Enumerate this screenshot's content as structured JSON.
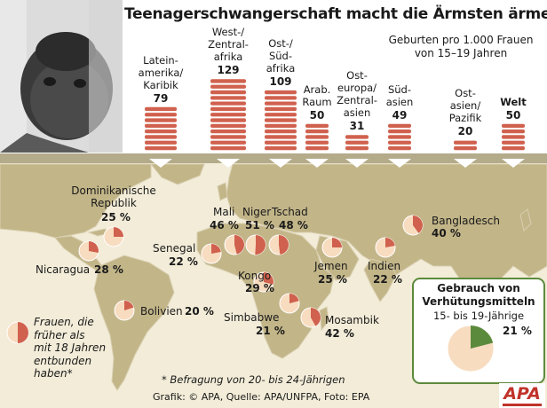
{
  "title": "Teenagerschwangerschaft macht die Ärmsten ärmer",
  "unit_note": "Geburten pro 1.000 Frauen\nvon 15–19 Jahren",
  "legend_note": "Frauen, die\nfrüher als\nmit 18 Jahren\nentbunden\nhaben*",
  "footnote": "* Befragung von 20- bis 24-Jährigen",
  "credit": "Grafik: © APA, Quelle: APA/UNFPA, Foto: EPA",
  "logo_text": "APA",
  "contraception": {
    "title": "Gebrauch von\nVerhütungsmitteln",
    "subtitle": "15- bis 19-Jährige",
    "value": 21,
    "label": "21 %"
  },
  "colors": {
    "bar": "#d0614e",
    "pie_base": "#f8dcc0",
    "pie_share": "#d0614e",
    "contra_share": "#5c8a3c",
    "band": "#b3ab8a",
    "ocean": "#f2ecd8",
    "land": "#c2b588"
  },
  "chart_data": [
    {
      "type": "bar",
      "title": "Geburten pro 1.000 Frauen von 15–19 Jahren",
      "categories": [
        "Lateinamerika/Karibik",
        "West-/Zentralafrika",
        "Ost-/Südafrika",
        "Arab. Raum",
        "Osteuropa/Zentralasien",
        "Südasien",
        "Ostasien/Pazifik",
        "Welt"
      ],
      "labels": [
        "Latein-\namerika/\nKaribik",
        "West-/\nZentral-\nafrika",
        "Ost-/\nSüd-\nafrika",
        "Arab.\nRaum",
        "Ost-\neuropa/\nZentral-\nasien",
        "Süd-\nasien",
        "Ost-\nasien/\nPazifik",
        "Welt"
      ],
      "values": [
        79,
        129,
        109,
        50,
        31,
        49,
        20,
        50
      ],
      "value_labels": [
        "79",
        "129",
        "109",
        "50",
        "31",
        "49",
        "20",
        "50"
      ]
    },
    {
      "type": "pie",
      "title": "Frauen, die früher als mit 18 Jahren entbunden haben",
      "countries": [
        {
          "name": "Dominikanische\nRepublik",
          "value": 25,
          "label": "25 %"
        },
        {
          "name": "Nicaragua",
          "value": 28,
          "label": "28 %"
        },
        {
          "name": "Senegal",
          "value": 22,
          "label": "22 %"
        },
        {
          "name": "Mali",
          "value": 46,
          "label": "46 %"
        },
        {
          "name": "Niger",
          "value": 51,
          "label": "51 %"
        },
        {
          "name": "Tschad",
          "value": 48,
          "label": "48 %"
        },
        {
          "name": "Kongo",
          "value": 29,
          "label": "29 %"
        },
        {
          "name": "Bolivien",
          "value": 20,
          "label": "20 %"
        },
        {
          "name": "Simbabwe",
          "value": 21,
          "label": "21 %"
        },
        {
          "name": "Mosambik",
          "value": 42,
          "label": "42 %"
        },
        {
          "name": "Jemen",
          "value": 25,
          "label": "25 %"
        },
        {
          "name": "Indien",
          "value": 22,
          "label": "22 %"
        },
        {
          "name": "Bangladesch",
          "value": 40,
          "label": "40 %"
        }
      ]
    }
  ]
}
